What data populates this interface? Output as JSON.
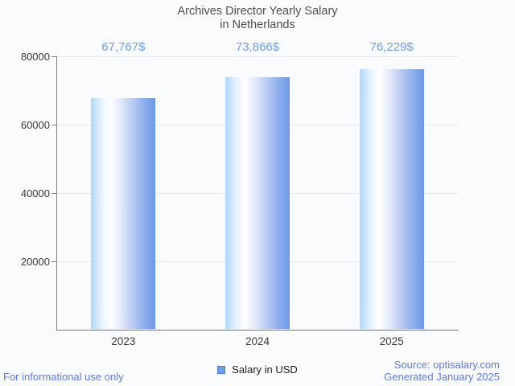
{
  "title": {
    "line1": "Archives Director Yearly Salary",
    "line2": "in Netherlands"
  },
  "chart_data": {
    "type": "bar",
    "categories": [
      "2023",
      "2024",
      "2025"
    ],
    "values": [
      67767,
      73866,
      76229
    ],
    "value_labels": [
      "67,767$",
      "73,866$",
      "76,229$"
    ],
    "series": [
      {
        "name": "Salary in USD",
        "values": [
          67767,
          73866,
          76229
        ]
      }
    ],
    "title": "Archives Director Yearly Salary in Netherlands",
    "xlabel": "",
    "ylabel": "",
    "ylim": [
      0,
      80000
    ],
    "yticks": [
      20000,
      40000,
      60000,
      80000
    ],
    "grid": true,
    "legend_position": "bottom"
  },
  "legend": {
    "label": "Salary in USD",
    "swatch_color": "#6d9eeb"
  },
  "footer": {
    "left": "For informational use only",
    "source": "Source: optisalary.com",
    "generated": "Generated January 2025"
  },
  "colors": {
    "background": "#fafbfd",
    "title_text": "#4e4e4e",
    "value_label": "#6d9eeb",
    "axis_text": "#3a3a3a",
    "footer_text": "#5d7ce0",
    "gridline": "#e4e7eb",
    "axis_line": "#808080",
    "bar_gradient_left": "#aed6fb",
    "bar_gradient_mid": "#ffffff",
    "bar_gradient_right": "#6c98e8"
  }
}
